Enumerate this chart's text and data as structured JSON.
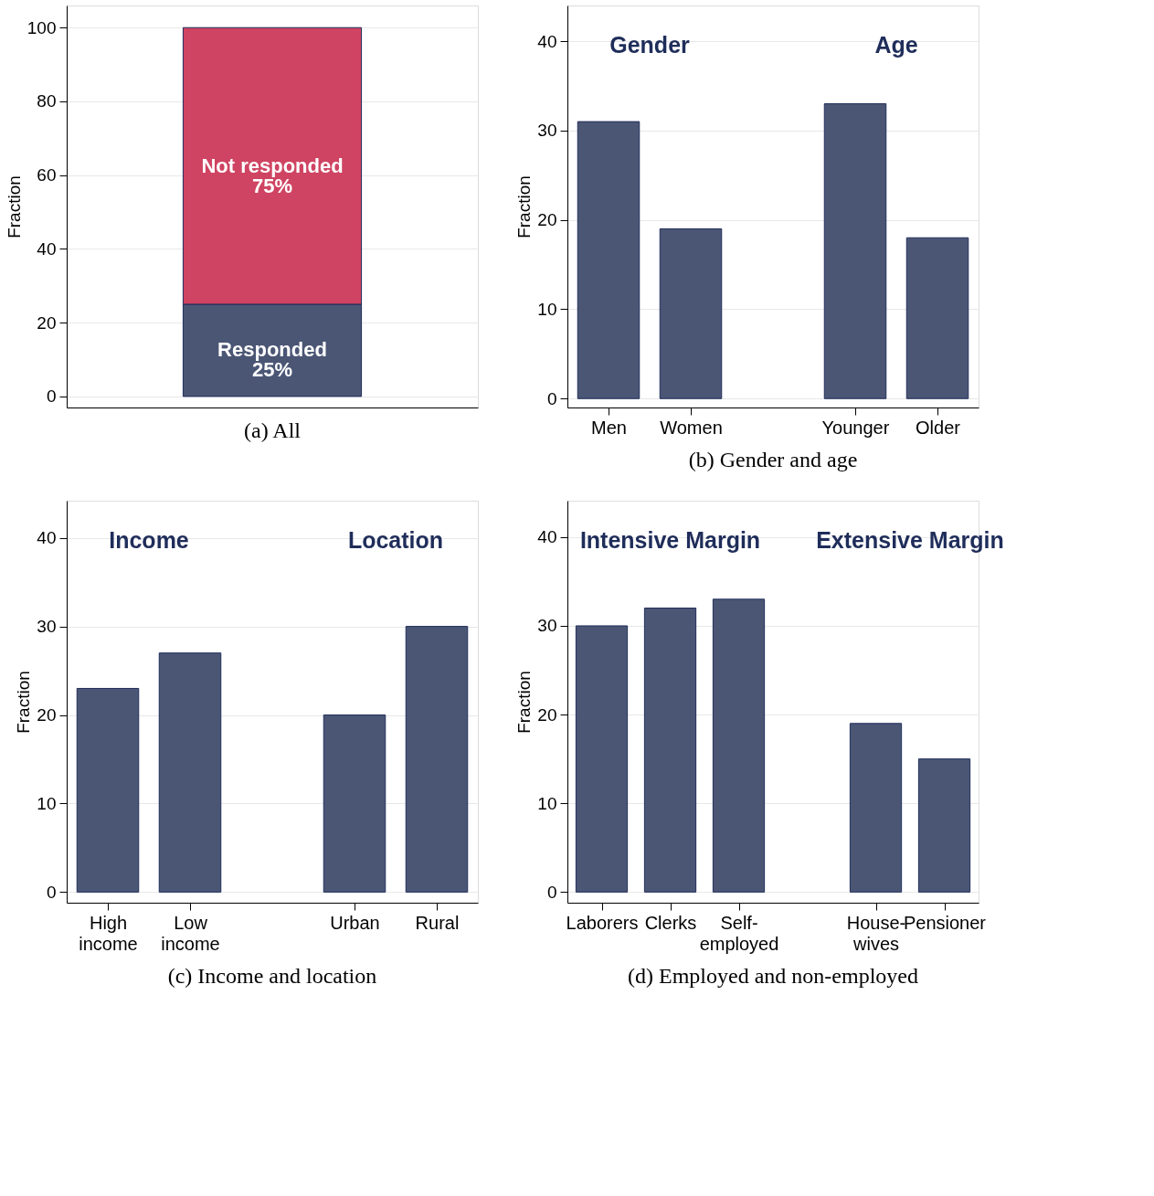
{
  "chart_data": [
    {
      "type": "bar",
      "title": "(a) All",
      "ylabel": "Fraction",
      "categories": [
        null
      ],
      "stacked": true,
      "ylim": [
        -3,
        106
      ],
      "yticks": [
        0,
        20,
        40,
        60,
        80,
        100
      ],
      "grid": "y",
      "series": [
        {
          "name": "Responded",
          "color": "#4b5675",
          "values": [
            25
          ],
          "value_labels": [
            "25%"
          ]
        },
        {
          "name": "Not responded",
          "color": "#cf4462",
          "values": [
            75
          ],
          "value_labels": [
            "75%"
          ]
        }
      ]
    },
    {
      "type": "bar",
      "title": "(b) Gender and age",
      "ylabel": "Fraction",
      "categories": [
        "Men",
        "Women",
        null,
        "Younger",
        "Older"
      ],
      "ylim": [
        -1,
        44
      ],
      "yticks": [
        0,
        10,
        20,
        30,
        40
      ],
      "grid": "y",
      "annotations": [
        "Gender",
        "Age"
      ],
      "series": [
        {
          "color": "#4b5675",
          "values": [
            31,
            19,
            null,
            33,
            18
          ]
        }
      ]
    },
    {
      "type": "bar",
      "title": "(c) Income and location",
      "ylabel": "Fraction",
      "categories": [
        "High\nincome",
        "Low\nincome",
        null,
        "Urban",
        "Rural"
      ],
      "ylim": [
        -1.2,
        44.2
      ],
      "yticks": [
        0,
        10,
        20,
        30,
        40
      ],
      "grid": "y",
      "annotations": [
        "Income",
        "Location"
      ],
      "series": [
        {
          "color": "#4b5675",
          "values": [
            23,
            27,
            null,
            20,
            30
          ]
        }
      ]
    },
    {
      "type": "bar",
      "title": "(d) Employed and non-employed",
      "ylabel": "Fraction",
      "categories": [
        "Laborers",
        "Clerks",
        "Self-\nemployed",
        null,
        "House-\nwives",
        "Pensioner"
      ],
      "ylim": [
        -1.2,
        44.1
      ],
      "yticks": [
        0,
        10,
        20,
        30,
        40
      ],
      "grid": "y",
      "annotations": [
        "Intensive Margin",
        "Extensive Margin"
      ],
      "series": [
        {
          "color": "#4b5675",
          "values": [
            30,
            32,
            33,
            null,
            19,
            15
          ]
        }
      ]
    }
  ]
}
